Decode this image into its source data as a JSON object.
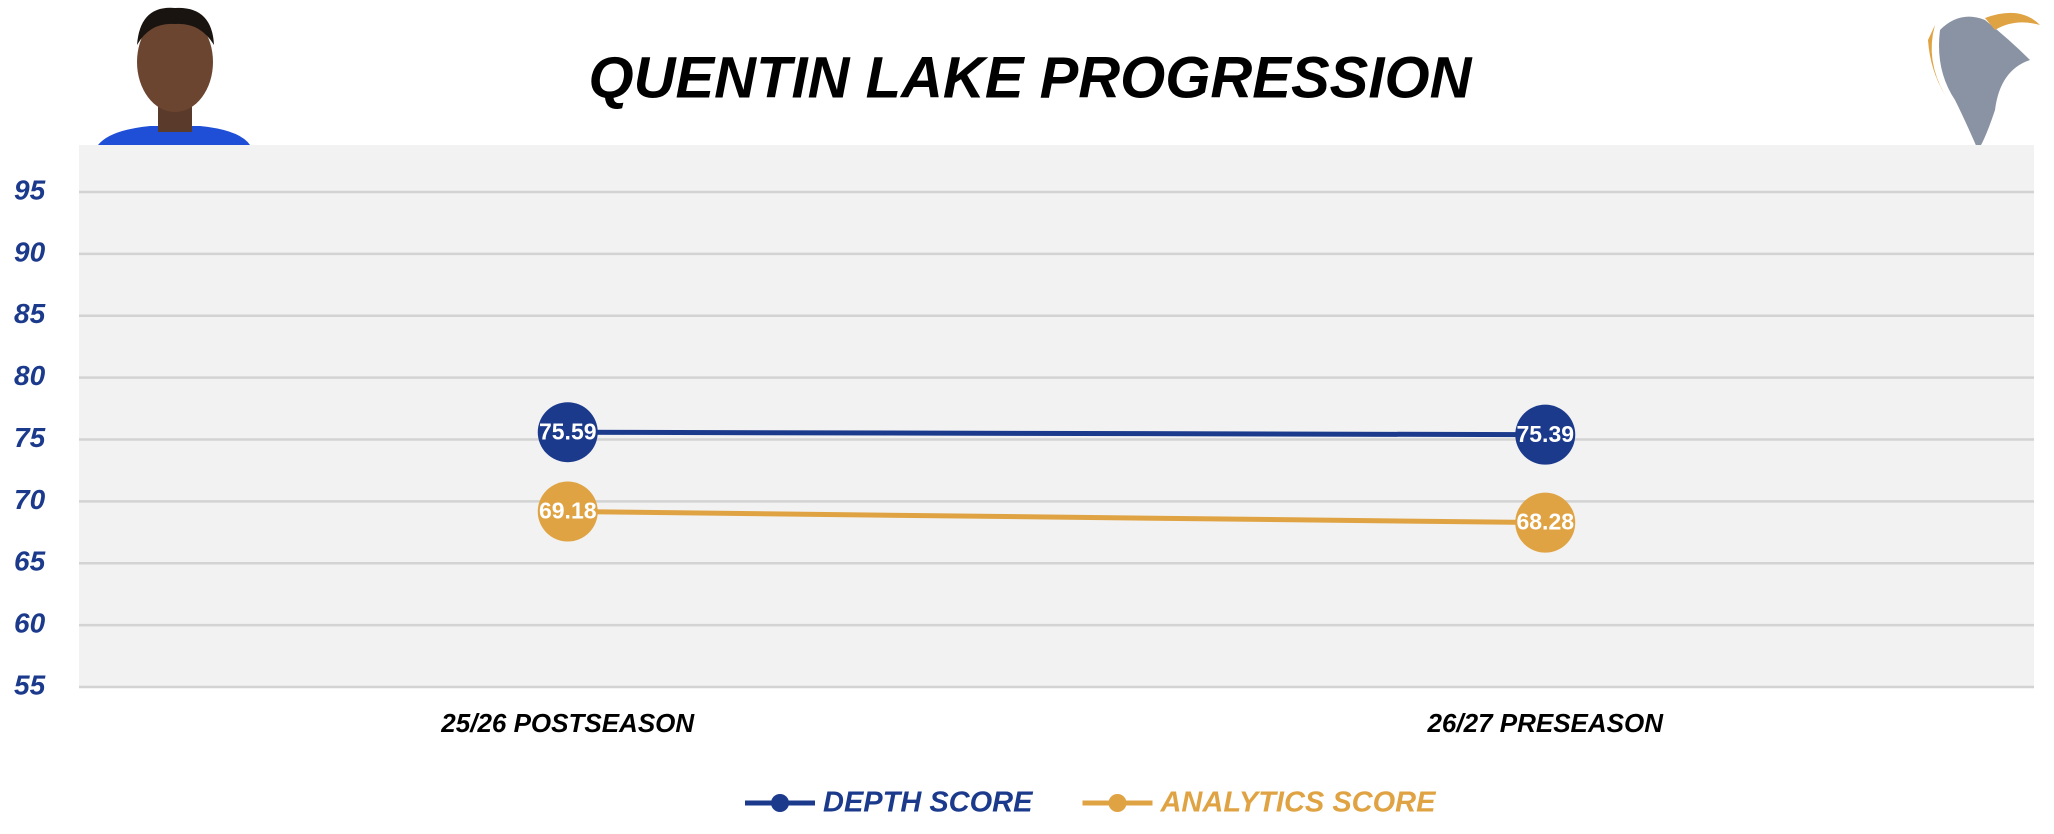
{
  "chart_data": {
    "type": "line",
    "title": "QUENTIN LAKE PROGRESSION",
    "categories": [
      "25/26 POSTSEASON",
      "26/27 PRESEASON"
    ],
    "series": [
      {
        "name": "DEPTH SCORE",
        "color": "#1b3a8c",
        "values": [
          75.59,
          75.39
        ]
      },
      {
        "name": "ANALYTICS SCORE",
        "color": "#e0a343",
        "values": [
          69.18,
          68.28
        ]
      }
    ],
    "ylim": [
      55,
      98.8
    ],
    "yticks": [
      55,
      60,
      65,
      70,
      75,
      80,
      85,
      90,
      95
    ],
    "grid": true,
    "legend": "bottom"
  }
}
